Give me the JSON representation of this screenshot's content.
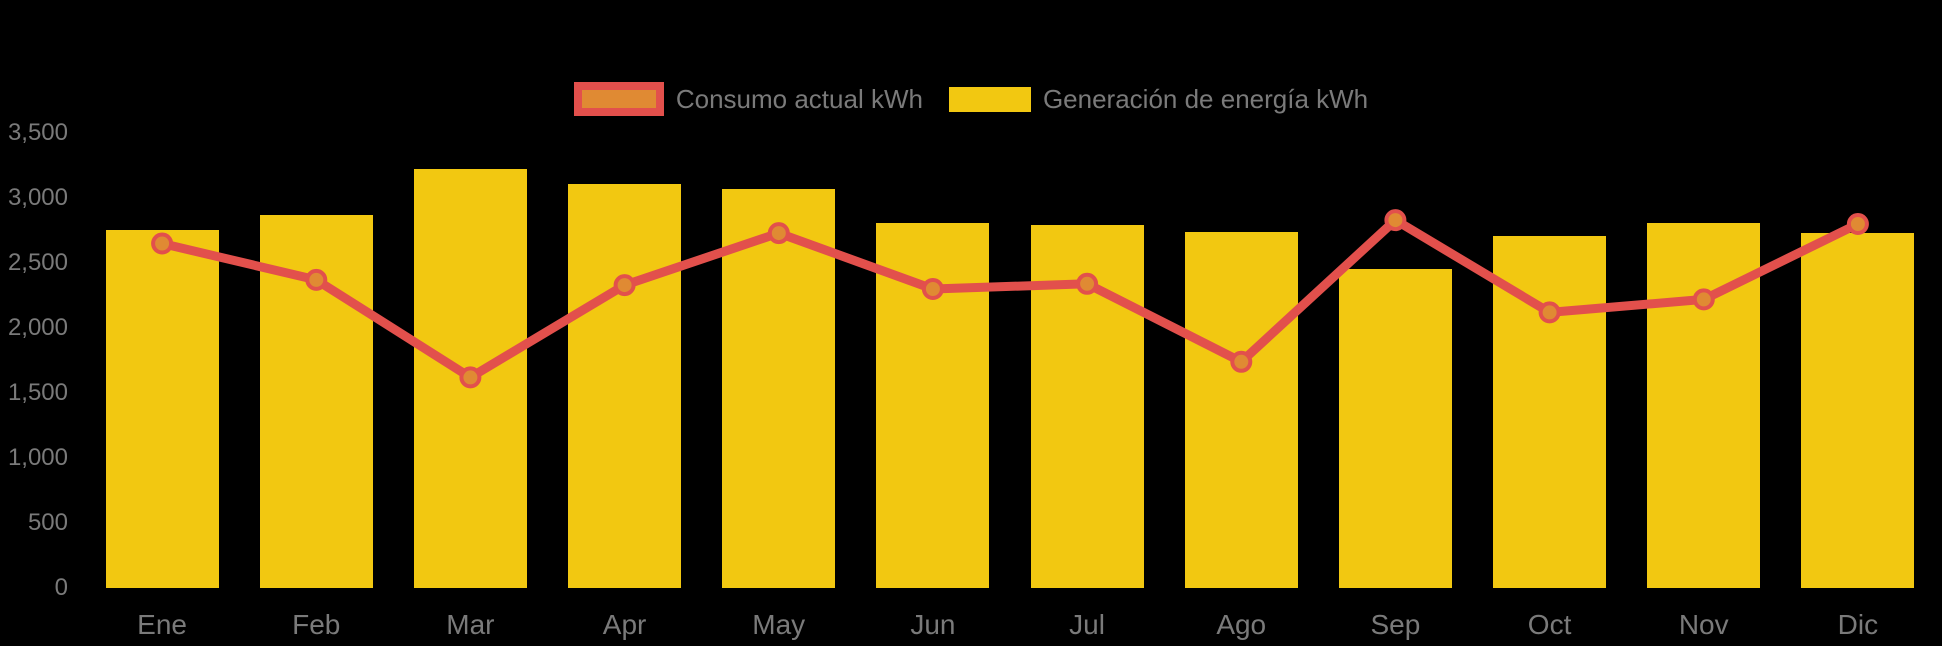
{
  "colors": {
    "background": "#000000",
    "bar": "#F2C811",
    "line": "#E2504C",
    "marker": "#E08A33",
    "text": "#7A7A7A"
  },
  "legend": {
    "position": "top-center"
  },
  "chart_data": {
    "type": "combo",
    "categories": [
      "Ene",
      "Feb",
      "Mar",
      "Apr",
      "May",
      "Jun",
      "Jul",
      "Ago",
      "Sep",
      "Oct",
      "Nov",
      "Dic"
    ],
    "series": [
      {
        "name": "Consumo actual kWh",
        "type": "line",
        "color": "#E2504C",
        "marker_color": "#E08A33",
        "values": [
          2650,
          2370,
          1620,
          2330,
          2730,
          2300,
          2340,
          1740,
          2830,
          2120,
          2220,
          2800
        ]
      },
      {
        "name": "Generación de energía kWh",
        "type": "bar",
        "color": "#F2C811",
        "values": [
          2750,
          2870,
          3220,
          3110,
          3070,
          2810,
          2790,
          2740,
          2450,
          2710,
          2810,
          2730
        ]
      }
    ],
    "y_axis": {
      "min": 0,
      "max": 3500,
      "step": 500,
      "tick_labels": [
        "0",
        "500",
        "1,000",
        "1,500",
        "2,000",
        "2,500",
        "3,000",
        "3,500"
      ]
    },
    "grid": false,
    "legend_position": "top-center",
    "background": "#000000"
  }
}
